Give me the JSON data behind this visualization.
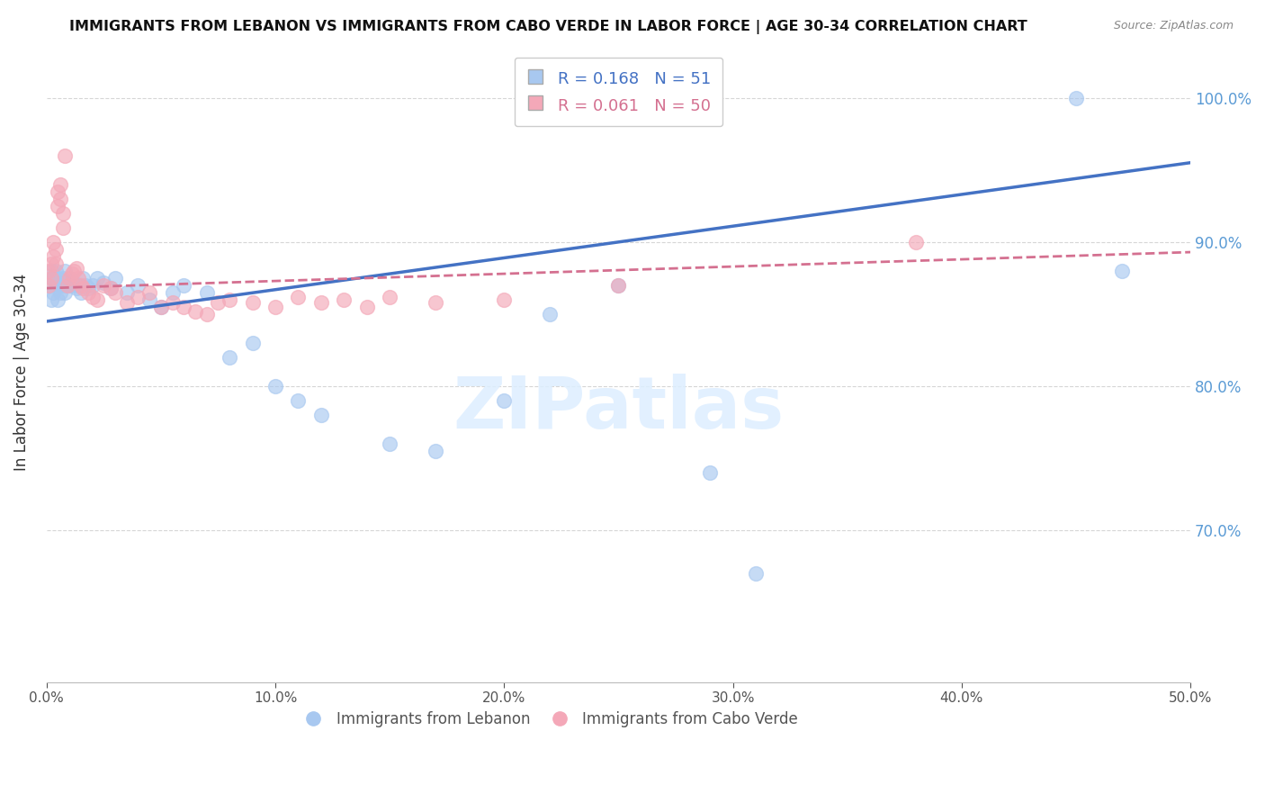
{
  "title": "IMMIGRANTS FROM LEBANON VS IMMIGRANTS FROM CABO VERDE IN LABOR FORCE | AGE 30-34 CORRELATION CHART",
  "source": "Source: ZipAtlas.com",
  "ylabel": "In Labor Force | Age 30-34",
  "R_lebanon": 0.168,
  "N_lebanon": 51,
  "R_caboverde": 0.061,
  "N_caboverde": 50,
  "xlim": [
    0.0,
    0.5
  ],
  "ylim": [
    0.595,
    1.025
  ],
  "xticks": [
    0.0,
    0.1,
    0.2,
    0.3,
    0.4,
    0.5
  ],
  "yticks": [
    0.7,
    0.8,
    0.9,
    1.0
  ],
  "grid_color": "#cccccc",
  "blue_color": "#a8c8f0",
  "pink_color": "#f4a8b8",
  "blue_line_color": "#4472c4",
  "pink_line_color": "#d47090",
  "right_tick_color": "#5b9bd5",
  "bottom_legend_blue": "Immigrants from Lebanon",
  "bottom_legend_pink": "Immigrants from Cabo Verde",
  "leb_intercept": 0.845,
  "leb_slope": 0.22,
  "cv_intercept": 0.868,
  "cv_slope": 0.05,
  "lebanon_x": [
    0.001,
    0.002,
    0.002,
    0.003,
    0.003,
    0.004,
    0.004,
    0.005,
    0.005,
    0.006,
    0.006,
    0.007,
    0.007,
    0.008,
    0.008,
    0.009,
    0.01,
    0.011,
    0.012,
    0.013,
    0.014,
    0.015,
    0.016,
    0.017,
    0.018,
    0.02,
    0.022,
    0.025,
    0.028,
    0.03,
    0.035,
    0.04,
    0.045,
    0.05,
    0.055,
    0.06,
    0.07,
    0.08,
    0.09,
    0.1,
    0.11,
    0.12,
    0.15,
    0.17,
    0.2,
    0.22,
    0.25,
    0.29,
    0.31,
    0.45,
    0.47
  ],
  "lebanon_y": [
    0.87,
    0.88,
    0.86,
    0.875,
    0.865,
    0.88,
    0.87,
    0.875,
    0.86,
    0.87,
    0.865,
    0.875,
    0.87,
    0.88,
    0.865,
    0.87,
    0.875,
    0.87,
    0.872,
    0.868,
    0.87,
    0.865,
    0.875,
    0.87,
    0.868,
    0.87,
    0.875,
    0.872,
    0.868,
    0.875,
    0.865,
    0.87,
    0.86,
    0.855,
    0.865,
    0.87,
    0.865,
    0.82,
    0.83,
    0.8,
    0.79,
    0.78,
    0.76,
    0.755,
    0.79,
    0.85,
    0.87,
    0.74,
    0.67,
    1.0,
    0.88
  ],
  "caboverde_x": [
    0.001,
    0.001,
    0.002,
    0.002,
    0.003,
    0.003,
    0.004,
    0.004,
    0.005,
    0.005,
    0.006,
    0.006,
    0.007,
    0.007,
    0.008,
    0.009,
    0.01,
    0.011,
    0.012,
    0.013,
    0.014,
    0.015,
    0.016,
    0.018,
    0.02,
    0.022,
    0.025,
    0.028,
    0.03,
    0.035,
    0.04,
    0.045,
    0.05,
    0.055,
    0.06,
    0.065,
    0.07,
    0.075,
    0.08,
    0.09,
    0.1,
    0.11,
    0.12,
    0.13,
    0.14,
    0.15,
    0.17,
    0.2,
    0.25,
    0.38
  ],
  "caboverde_y": [
    0.88,
    0.87,
    0.885,
    0.875,
    0.9,
    0.89,
    0.895,
    0.885,
    0.935,
    0.925,
    0.94,
    0.93,
    0.92,
    0.91,
    0.96,
    0.87,
    0.875,
    0.878,
    0.88,
    0.882,
    0.875,
    0.87,
    0.868,
    0.865,
    0.862,
    0.86,
    0.87,
    0.868,
    0.865,
    0.858,
    0.862,
    0.865,
    0.855,
    0.858,
    0.855,
    0.852,
    0.85,
    0.858,
    0.86,
    0.858,
    0.855,
    0.862,
    0.858,
    0.86,
    0.855,
    0.862,
    0.858,
    0.86,
    0.87,
    0.9
  ]
}
